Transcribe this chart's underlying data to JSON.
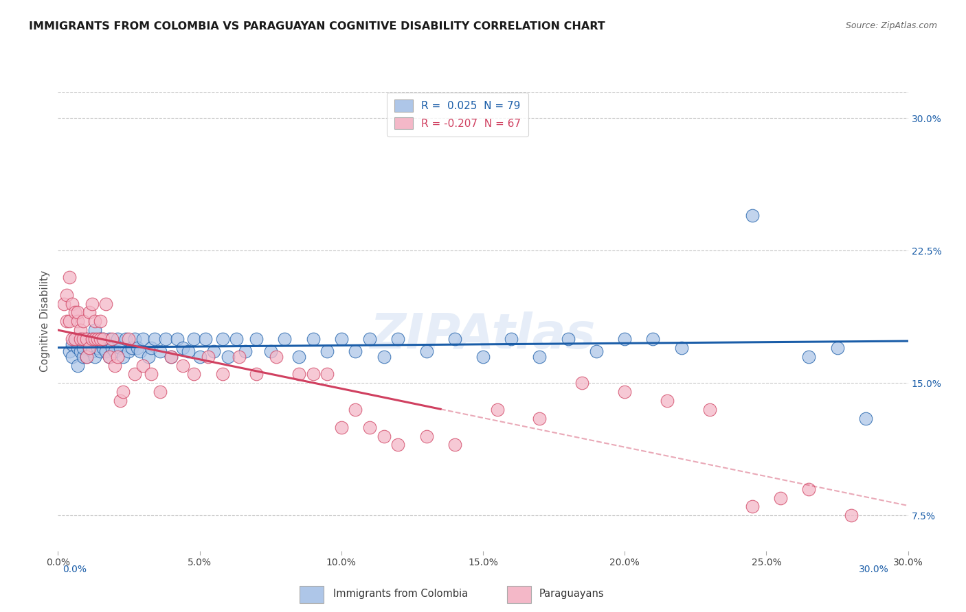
{
  "title": "IMMIGRANTS FROM COLOMBIA VS PARAGUAYAN COGNITIVE DISABILITY CORRELATION CHART",
  "source": "Source: ZipAtlas.com",
  "xlabel_colombia": "Immigrants from Colombia",
  "xlabel_paraguayan": "Paraguayans",
  "ylabel": "Cognitive Disability",
  "xlim": [
    0.0,
    0.3
  ],
  "ylim": [
    0.055,
    0.315
  ],
  "xticks": [
    0.0,
    0.05,
    0.1,
    0.15,
    0.2,
    0.25,
    0.3
  ],
  "yticks_right": [
    0.075,
    0.15,
    0.225,
    0.3
  ],
  "ytick_labels_right": [
    "7.5%",
    "15.0%",
    "22.5%",
    "30.0%"
  ],
  "xtick_labels": [
    "0.0%",
    "5.0%",
    "10.0%",
    "15.0%",
    "20.0%",
    "25.0%",
    "30.0%"
  ],
  "colombia_R": 0.025,
  "colombia_N": 79,
  "paraguay_R": -0.207,
  "paraguay_N": 67,
  "colombia_color": "#aec6e8",
  "paraguay_color": "#f4b8c8",
  "colombia_line_color": "#1a5da8",
  "paraguay_line_color": "#d04060",
  "colombia_x": [
    0.004,
    0.005,
    0.005,
    0.006,
    0.007,
    0.007,
    0.008,
    0.008,
    0.009,
    0.009,
    0.01,
    0.01,
    0.011,
    0.012,
    0.012,
    0.013,
    0.013,
    0.014,
    0.015,
    0.015,
    0.016,
    0.016,
    0.017,
    0.018,
    0.018,
    0.019,
    0.02,
    0.021,
    0.022,
    0.023,
    0.024,
    0.025,
    0.026,
    0.027,
    0.028,
    0.029,
    0.03,
    0.032,
    0.033,
    0.034,
    0.036,
    0.038,
    0.04,
    0.042,
    0.044,
    0.046,
    0.048,
    0.05,
    0.052,
    0.055,
    0.058,
    0.06,
    0.063,
    0.066,
    0.07,
    0.075,
    0.08,
    0.085,
    0.09,
    0.095,
    0.1,
    0.105,
    0.11,
    0.115,
    0.12,
    0.13,
    0.14,
    0.15,
    0.16,
    0.17,
    0.18,
    0.19,
    0.2,
    0.21,
    0.22,
    0.245,
    0.265,
    0.275,
    0.285
  ],
  "colombia_y": [
    0.168,
    0.172,
    0.165,
    0.175,
    0.17,
    0.16,
    0.168,
    0.175,
    0.165,
    0.17,
    0.175,
    0.165,
    0.17,
    0.168,
    0.175,
    0.165,
    0.18,
    0.17,
    0.175,
    0.168,
    0.17,
    0.175,
    0.168,
    0.175,
    0.165,
    0.17,
    0.168,
    0.175,
    0.17,
    0.165,
    0.175,
    0.168,
    0.17,
    0.175,
    0.17,
    0.168,
    0.175,
    0.165,
    0.17,
    0.175,
    0.168,
    0.175,
    0.165,
    0.175,
    0.17,
    0.168,
    0.175,
    0.165,
    0.175,
    0.168,
    0.175,
    0.165,
    0.175,
    0.168,
    0.175,
    0.168,
    0.175,
    0.165,
    0.175,
    0.168,
    0.175,
    0.168,
    0.175,
    0.165,
    0.175,
    0.168,
    0.175,
    0.165,
    0.175,
    0.165,
    0.175,
    0.168,
    0.175,
    0.175,
    0.17,
    0.245,
    0.165,
    0.17,
    0.13
  ],
  "paraguay_x": [
    0.002,
    0.003,
    0.003,
    0.004,
    0.004,
    0.005,
    0.005,
    0.006,
    0.006,
    0.007,
    0.007,
    0.008,
    0.008,
    0.009,
    0.009,
    0.01,
    0.01,
    0.011,
    0.011,
    0.012,
    0.012,
    0.013,
    0.013,
    0.014,
    0.015,
    0.015,
    0.016,
    0.017,
    0.018,
    0.019,
    0.02,
    0.021,
    0.022,
    0.023,
    0.025,
    0.027,
    0.03,
    0.033,
    0.036,
    0.04,
    0.044,
    0.048,
    0.053,
    0.058,
    0.064,
    0.07,
    0.077,
    0.085,
    0.09,
    0.095,
    0.1,
    0.105,
    0.11,
    0.115,
    0.12,
    0.13,
    0.14,
    0.155,
    0.17,
    0.185,
    0.2,
    0.215,
    0.23,
    0.245,
    0.255,
    0.265,
    0.28
  ],
  "paraguay_y": [
    0.195,
    0.185,
    0.2,
    0.21,
    0.185,
    0.195,
    0.175,
    0.19,
    0.175,
    0.185,
    0.19,
    0.18,
    0.175,
    0.185,
    0.175,
    0.175,
    0.165,
    0.19,
    0.17,
    0.175,
    0.195,
    0.185,
    0.175,
    0.175,
    0.185,
    0.175,
    0.175,
    0.195,
    0.165,
    0.175,
    0.16,
    0.165,
    0.14,
    0.145,
    0.175,
    0.155,
    0.16,
    0.155,
    0.145,
    0.165,
    0.16,
    0.155,
    0.165,
    0.155,
    0.165,
    0.155,
    0.165,
    0.155,
    0.155,
    0.155,
    0.125,
    0.135,
    0.125,
    0.12,
    0.115,
    0.12,
    0.115,
    0.135,
    0.13,
    0.15,
    0.145,
    0.14,
    0.135,
    0.08,
    0.085,
    0.09,
    0.075
  ],
  "watermark_text": "ZIPAtlas",
  "background_color": "#ffffff",
  "grid_color": "#c8c8c8"
}
